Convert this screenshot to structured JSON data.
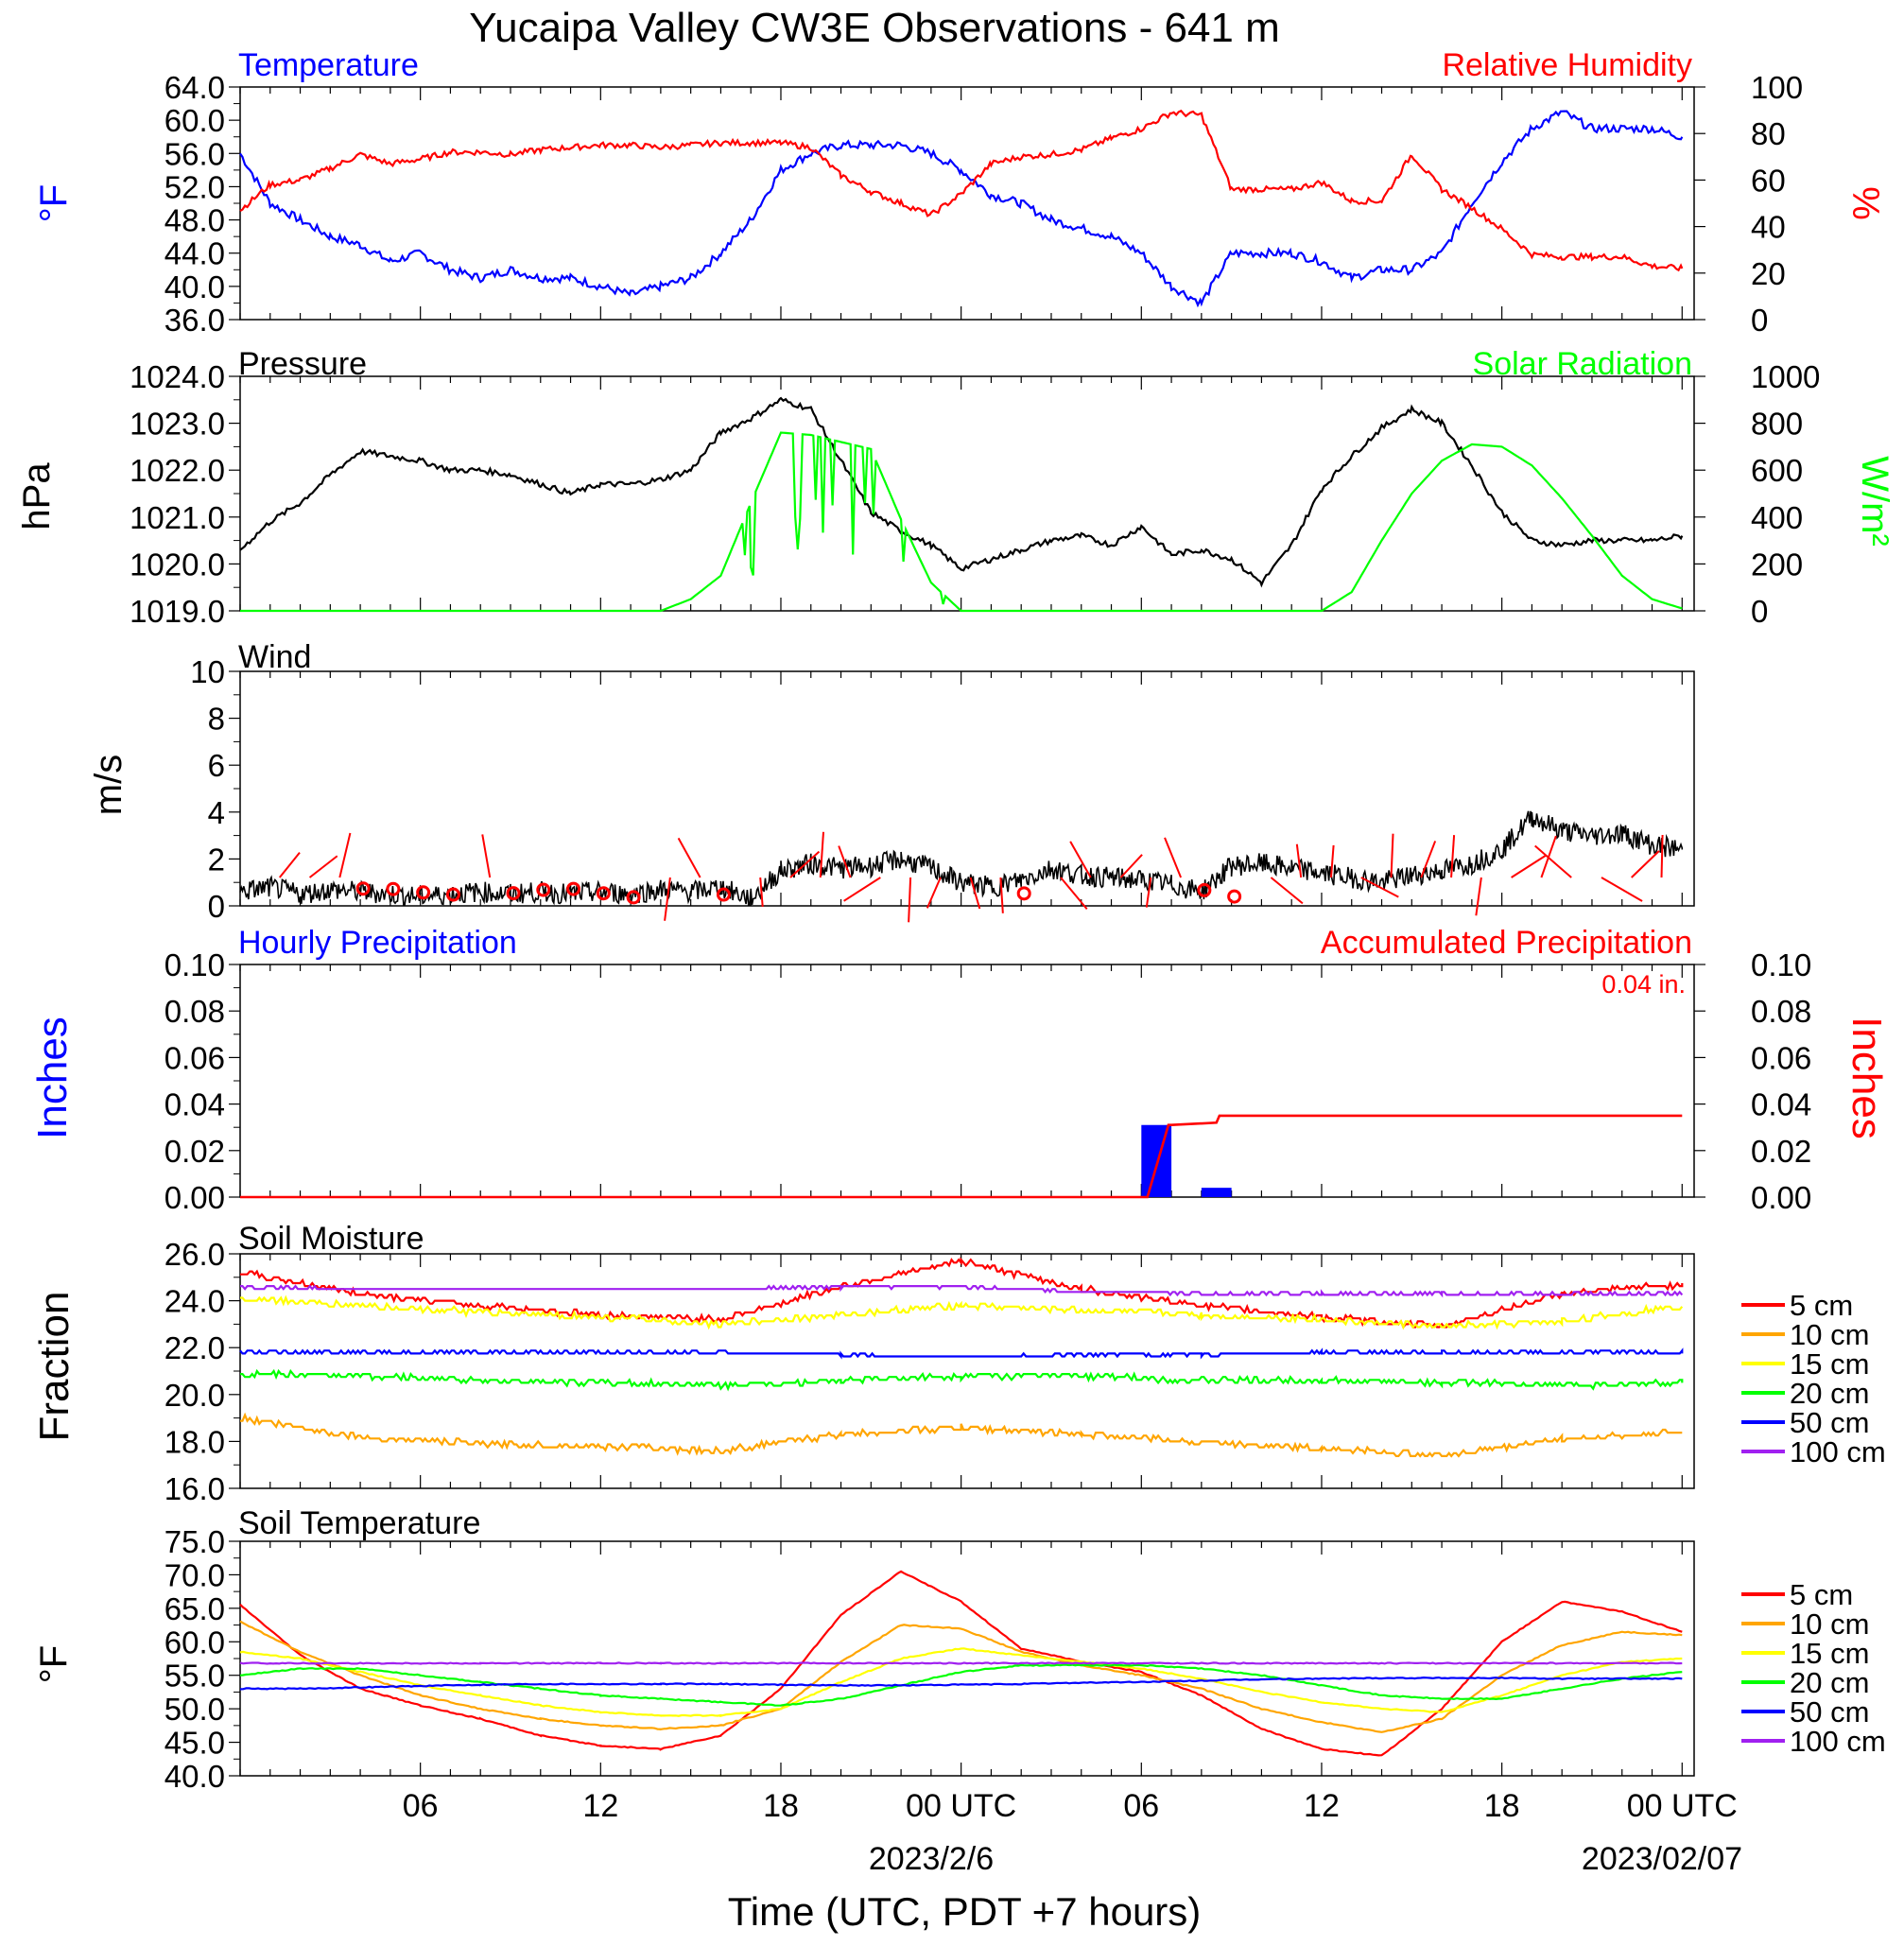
{
  "title": "Yucaipa Valley CW3E Observations - 641 m",
  "x_axis": {
    "title": "Time (UTC, PDT +7 hours)",
    "tick_labels": [
      "06",
      "12",
      "18",
      "00 UTC",
      "06",
      "12",
      "18",
      "00 UTC"
    ],
    "date_labels": [
      "2023/2/6",
      "2023/02/07"
    ]
  },
  "legend_soil": [
    "5 cm",
    "10 cm",
    "15 cm",
    "20 cm",
    "50 cm",
    "100 cm"
  ],
  "precip_total_label": "0.04 in.",
  "colors": {
    "temperature": "#0000ff",
    "humidity": "#ff0000",
    "pressure": "#000000",
    "solar": "#00ff00",
    "wind": "#000000",
    "wind_barb": "#ff0000",
    "hourly_precip": "#0000ff",
    "accum_precip": "#ff0000",
    "soil_5": "#ff0000",
    "soil_10": "#ffa500",
    "soil_15": "#ffff00",
    "soil_20": "#00ff00",
    "soil_50": "#0000ff",
    "soil_100": "#a020f0"
  },
  "chart_data": [
    {
      "type": "line",
      "title": "Temperature / Relative Humidity",
      "label_left": "Temperature",
      "label_right": "Relative Humidity",
      "ylabel_left": "oF",
      "ylabel_right": "%",
      "ylim_left": [
        36,
        64
      ],
      "ylim_right": [
        0,
        100
      ],
      "yticks_left": [
        "64.0",
        "60.0",
        "56.0",
        "52.0",
        "48.0",
        "44.0",
        "40.0",
        "36.0"
      ],
      "yticks_right": [
        "100",
        "80",
        "60",
        "40",
        "20",
        "0"
      ],
      "x_hours": [
        0,
        1,
        2,
        3,
        4,
        5,
        6,
        7,
        8,
        9,
        10,
        11,
        12,
        13,
        14,
        15,
        16,
        17,
        18,
        19,
        20,
        21,
        22,
        23,
        24,
        25,
        26,
        27,
        28,
        29,
        30,
        31,
        32,
        33,
        34,
        35,
        36,
        37,
        38,
        39,
        40,
        41,
        42,
        43,
        44,
        45,
        46,
        47,
        48
      ],
      "series": [
        {
          "name": "Temperature",
          "axis": "left",
          "values": [
            56,
            50,
            48,
            46,
            45,
            43,
            44,
            42,
            41,
            42,
            41,
            41,
            40,
            39,
            40,
            41,
            44,
            48,
            54,
            56,
            57,
            57,
            57,
            56,
            54,
            51,
            50,
            48,
            47,
            46,
            44,
            40,
            38,
            44,
            44,
            44,
            43,
            41,
            42,
            42,
            44,
            50,
            55,
            59,
            61,
            59,
            59,
            59,
            58
          ]
        },
        {
          "name": "Relative Humidity",
          "axis": "left_is_false",
          "values": [
            47,
            58,
            60,
            65,
            71,
            67,
            69,
            72,
            72,
            71,
            73,
            74,
            75,
            75,
            74,
            75,
            76,
            76,
            76,
            74,
            62,
            55,
            50,
            45,
            54,
            67,
            70,
            71,
            73,
            78,
            82,
            89,
            88,
            56,
            56,
            56,
            59,
            51,
            51,
            71,
            56,
            48,
            39,
            28,
            27,
            27,
            27,
            23,
            22
          ]
        }
      ]
    },
    {
      "type": "line",
      "title": "Pressure / Solar Radiation",
      "label_left": "Pressure",
      "label_right": "Solar Radiation",
      "ylabel_left": "hPa",
      "ylabel_right": "W/m2",
      "ylim_left": [
        1019,
        1024
      ],
      "ylim_right": [
        0,
        1000
      ],
      "yticks_left": [
        "1024.0",
        "1023.0",
        "1022.0",
        "1021.0",
        "1020.0",
        "1019.0"
      ],
      "yticks_right": [
        "1000",
        "800",
        "600",
        "400",
        "200",
        "0"
      ],
      "x_hours": [
        0,
        1,
        2,
        3,
        4,
        5,
        6,
        7,
        8,
        9,
        10,
        11,
        12,
        13,
        14,
        15,
        16,
        17,
        18,
        19,
        20,
        21,
        22,
        23,
        24,
        25,
        26,
        27,
        28,
        29,
        30,
        31,
        32,
        33,
        34,
        35,
        36,
        37,
        38,
        39,
        40,
        41,
        42,
        43,
        44,
        45,
        46,
        47,
        48
      ],
      "series": [
        {
          "name": "Pressure",
          "axis": "left",
          "values": [
            1020.3,
            1020.9,
            1021.3,
            1021.9,
            1022.4,
            1022.3,
            1022.2,
            1022.0,
            1022.0,
            1021.9,
            1021.7,
            1021.5,
            1021.7,
            1021.7,
            1021.8,
            1022.0,
            1022.8,
            1023.1,
            1023.5,
            1023.3,
            1022.2,
            1021.1,
            1020.7,
            1020.4,
            1019.9,
            1020.1,
            1020.3,
            1020.5,
            1020.6,
            1020.4,
            1020.8,
            1020.2,
            1020.3,
            1020.1,
            1019.6,
            1020.4,
            1021.6,
            1022.3,
            1022.9,
            1023.3,
            1023.0,
            1022.1,
            1021.1,
            1020.5,
            1020.4,
            1020.5,
            1020.5,
            1020.5,
            1020.6
          ]
        },
        {
          "name": "Solar Radiation",
          "axis": "right",
          "values": [
            0,
            0,
            0,
            0,
            0,
            0,
            0,
            0,
            0,
            0,
            0,
            0,
            0,
            0,
            0,
            50,
            150,
            460,
            760,
            750,
            720,
            690,
            390,
            120,
            0,
            0,
            0,
            0,
            0,
            0,
            0,
            0,
            0,
            0,
            0,
            0,
            0,
            80,
            300,
            500,
            640,
            710,
            700,
            620,
            480,
            320,
            150,
            50,
            10
          ]
        }
      ]
    },
    {
      "type": "line",
      "title": "Wind",
      "ylabel": "m/s",
      "ylim": [
        0,
        10
      ],
      "yticks": [
        "10",
        "8",
        "6",
        "4",
        "2",
        "0"
      ],
      "x_hours": [
        0,
        1,
        2,
        3,
        4,
        5,
        6,
        7,
        8,
        9,
        10,
        11,
        12,
        13,
        14,
        15,
        16,
        17,
        18,
        19,
        20,
        21,
        22,
        23,
        24,
        25,
        26,
        27,
        28,
        29,
        30,
        31,
        32,
        33,
        34,
        35,
        36,
        37,
        38,
        39,
        40,
        41,
        42,
        43,
        44,
        45,
        46,
        47,
        48
      ],
      "series": [
        {
          "name": "Wind",
          "values": [
            0.6,
            0.8,
            0.5,
            0.7,
            0.6,
            0.5,
            0.4,
            0.5,
            0.6,
            0.5,
            0.6,
            0.5,
            0.6,
            0.5,
            0.7,
            0.6,
            0.8,
            0.3,
            1.5,
            1.8,
            1.6,
            1.7,
            2.0,
            1.6,
            1.0,
            0.8,
            1.1,
            1.6,
            1.3,
            1.2,
            1.1,
            0.9,
            0.6,
            1.7,
            1.8,
            1.6,
            1.4,
            1.2,
            1.0,
            1.3,
            1.5,
            1.8,
            2.4,
            3.8,
            3.2,
            3.0,
            3.1,
            2.6,
            2.4
          ]
        }
      ],
      "calm_markers_hours": [
        4,
        5,
        6,
        7,
        9,
        10,
        11,
        12,
        13,
        16,
        26,
        32,
        33
      ]
    },
    {
      "type": "bar",
      "title": "Precipitation",
      "label_left": "Hourly Precipitation",
      "label_right": "Accumulated Precipitation",
      "ylabel_left": "Inches",
      "ylabel_right": "Inches",
      "ylim": [
        0,
        0.1
      ],
      "yticks": [
        "0.10",
        "0.08",
        "0.06",
        "0.04",
        "0.02",
        "0.00"
      ],
      "hourly": [
        {
          "hour": 30.5,
          "value": 0.031
        },
        {
          "hour": 32.5,
          "value": 0.004
        }
      ],
      "accumulated": {
        "x_hours": [
          0,
          30.2,
          30.9,
          31.0,
          32.5,
          32.6,
          48
        ],
        "values": [
          0,
          0,
          0.031,
          0.031,
          0.032,
          0.035,
          0.035
        ]
      }
    },
    {
      "type": "line",
      "title": "Soil Moisture",
      "ylabel": "Fraction",
      "ylim": [
        16,
        26
      ],
      "yticks": [
        "26.0",
        "24.0",
        "22.0",
        "20.0",
        "18.0",
        "16.0"
      ],
      "x_hours": [
        0,
        4,
        8,
        12,
        16,
        20,
        24,
        28,
        32,
        36,
        40,
        44,
        48
      ],
      "series": [
        {
          "name": "5 cm",
          "values": [
            25.2,
            24.3,
            23.8,
            23.4,
            23.2,
            24.6,
            25.7,
            24.5,
            23.8,
            23.3,
            22.9,
            24.3,
            24.7
          ]
        },
        {
          "name": "10 cm",
          "values": [
            19.0,
            18.2,
            17.9,
            17.8,
            17.6,
            18.3,
            18.6,
            18.3,
            18.0,
            17.7,
            17.4,
            18.1,
            18.4
          ]
        },
        {
          "name": "15 cm",
          "values": [
            24.1,
            23.8,
            23.5,
            23.3,
            23.0,
            23.4,
            23.8,
            23.6,
            23.4,
            23.2,
            22.9,
            23.1,
            23.8
          ]
        },
        {
          "name": "20 cm",
          "values": [
            20.9,
            20.8,
            20.6,
            20.5,
            20.4,
            20.6,
            20.8,
            20.8,
            20.6,
            20.6,
            20.5,
            20.4,
            20.5
          ]
        },
        {
          "name": "50 cm",
          "values": [
            21.8,
            21.8,
            21.8,
            21.8,
            21.8,
            21.7,
            21.6,
            21.7,
            21.7,
            21.8,
            21.8,
            21.8,
            21.8
          ]
        },
        {
          "name": "100 cm",
          "values": [
            24.6,
            24.5,
            24.5,
            24.5,
            24.5,
            24.6,
            24.6,
            24.4,
            24.3,
            24.3,
            24.3,
            24.3,
            24.3
          ]
        }
      ]
    },
    {
      "type": "line",
      "title": "Soil Temperature",
      "ylabel": "oF",
      "ylim": [
        40,
        75
      ],
      "yticks": [
        "75.0",
        "70.0",
        "65.0",
        "60.0",
        "55.0",
        "50.0",
        "45.0",
        "40.0"
      ],
      "x_hours": [
        0,
        2,
        4,
        6,
        8,
        10,
        12,
        14,
        16,
        18,
        20,
        22,
        24,
        26,
        28,
        30,
        32,
        34,
        36,
        38,
        40,
        42,
        44,
        46,
        48
      ],
      "series": [
        {
          "name": "5 cm",
          "values": [
            65.5,
            58.0,
            53.0,
            50.5,
            48.5,
            46.0,
            44.5,
            44.0,
            46.0,
            53.0,
            64.0,
            70.5,
            66.0,
            59.0,
            57.0,
            55.5,
            52.0,
            47.0,
            44.0,
            43.0,
            50.0,
            60.0,
            66.0,
            64.5,
            61.5
          ]
        },
        {
          "name": "10 cm",
          "values": [
            63.0,
            58.5,
            55.0,
            52.0,
            50.0,
            48.5,
            47.5,
            47.0,
            47.5,
            50.0,
            57.0,
            62.5,
            62.0,
            58.5,
            56.5,
            55.0,
            53.0,
            50.0,
            48.0,
            46.5,
            48.5,
            55.0,
            59.5,
            61.5,
            61.0
          ]
        },
        {
          "name": "15 cm",
          "values": [
            58.5,
            57.5,
            55.5,
            53.5,
            52.0,
            50.5,
            49.5,
            49.0,
            49.0,
            50.0,
            54.0,
            57.5,
            59.0,
            58.0,
            57.0,
            56.0,
            54.5,
            52.5,
            51.0,
            50.0,
            49.5,
            52.0,
            55.0,
            57.0,
            57.5
          ]
        },
        {
          "name": "20 cm",
          "values": [
            55.0,
            56.0,
            56.0,
            55.0,
            54.0,
            53.0,
            52.0,
            51.5,
            51.0,
            50.5,
            51.5,
            53.5,
            55.5,
            56.5,
            56.5,
            56.5,
            56.0,
            55.0,
            53.5,
            52.0,
            51.5,
            51.5,
            53.0,
            54.5,
            55.5
          ]
        },
        {
          "name": "50 cm",
          "values": [
            53.0,
            53.0,
            53.2,
            53.4,
            53.6,
            53.7,
            53.7,
            53.7,
            53.7,
            53.6,
            53.5,
            53.5,
            53.6,
            53.7,
            53.9,
            54.0,
            54.2,
            54.4,
            54.5,
            54.6,
            54.6,
            54.6,
            54.5,
            54.5,
            54.5
          ]
        },
        {
          "name": "100 cm",
          "values": [
            56.8,
            56.8,
            56.8,
            56.8,
            56.8,
            56.8,
            56.8,
            56.8,
            56.8,
            56.8,
            56.8,
            56.8,
            56.8,
            56.8,
            56.8,
            56.8,
            56.8,
            56.8,
            56.8,
            56.8,
            56.8,
            56.8,
            56.8,
            56.8,
            56.8
          ]
        }
      ]
    }
  ]
}
